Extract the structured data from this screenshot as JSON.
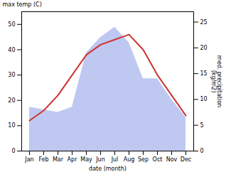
{
  "chart_data": {
    "type": "combo",
    "xlabel": "date (month)",
    "ylabel": "max temp (C)",
    "y2label": "med. precipitation\n(kg/m2)",
    "categories": [
      "Jan",
      "Feb",
      "Mar",
      "Apr",
      "May",
      "Jun",
      "Jul",
      "Aug",
      "Sep",
      "Oct",
      "Nov",
      "Dec"
    ],
    "series": [
      {
        "type": "area",
        "axis": "y2",
        "color": "#bfc8f0",
        "values": [
          8.5,
          8.0,
          7.5,
          8.5,
          19,
          22,
          24,
          21,
          14,
          14,
          10,
          6.5
        ]
      },
      {
        "type": "line",
        "color": "#cc3333",
        "values": [
          12,
          16,
          22,
          30,
          38,
          42,
          44,
          46,
          40,
          30,
          22,
          14
        ]
      }
    ],
    "ylim": [
      0,
      55
    ],
    "yticks": [
      0,
      10,
      20,
      30,
      40,
      50
    ],
    "y2lim": [
      0,
      27
    ],
    "y2ticks": [
      0,
      5,
      10,
      15,
      20,
      25
    ],
    "grid": false
  }
}
